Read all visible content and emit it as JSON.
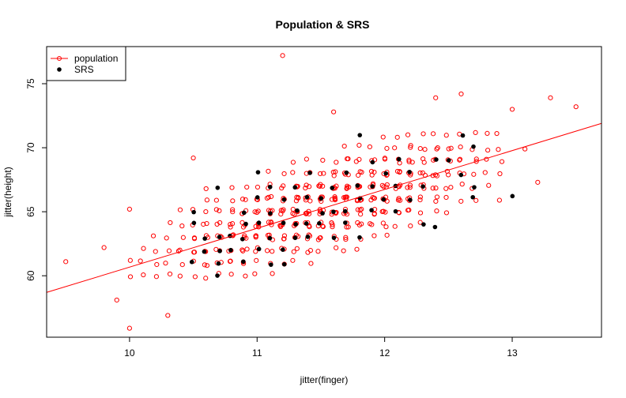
{
  "chart_data": {
    "type": "scatter",
    "title": "Population & SRS",
    "xlabel": "jitter(finger)",
    "ylabel": "jitter(height)",
    "xlim": [
      9.35,
      13.7
    ],
    "ylim": [
      55.2,
      77.9
    ],
    "xticks": [
      10,
      11,
      12,
      13
    ],
    "yticks": [
      60,
      65,
      70,
      75
    ],
    "grid": false,
    "legend": {
      "placement": "top-left",
      "entries": [
        {
          "label": "population",
          "color": "#ff0000",
          "symbol": "open-circle-line"
        },
        {
          "label": "SRS",
          "color": "#000000",
          "symbol": "filled-circle"
        }
      ]
    },
    "regression_line": {
      "color": "#ff0000",
      "x": [
        9.35,
        13.7
      ],
      "y": [
        58.7,
        71.9
      ]
    },
    "population_color": "#ff0000",
    "srs_color": "#000000",
    "population_outliers": [
      {
        "x": 9.5,
        "y": 61.1
      },
      {
        "x": 9.8,
        "y": 62.2
      },
      {
        "x": 9.9,
        "y": 58.1
      },
      {
        "x": 10.0,
        "y": 55.9
      },
      {
        "x": 10.0,
        "y": 65.2
      },
      {
        "x": 10.3,
        "y": 56.9
      },
      {
        "x": 10.5,
        "y": 69.2
      },
      {
        "x": 11.2,
        "y": 77.2
      },
      {
        "x": 10.6,
        "y": 66.8
      },
      {
        "x": 11.6,
        "y": 72.8
      },
      {
        "x": 12.4,
        "y": 73.9
      },
      {
        "x": 12.6,
        "y": 74.2
      },
      {
        "x": 13.3,
        "y": 73.9
      },
      {
        "x": 13.5,
        "y": 73.2
      },
      {
        "x": 13.2,
        "y": 67.3
      },
      {
        "x": 13.0,
        "y": 73.0
      },
      {
        "x": 12.9,
        "y": 65.9
      },
      {
        "x": 13.1,
        "y": 69.9
      }
    ],
    "population_grid": {
      "x_range": [
        10.0,
        12.9
      ],
      "x_step": 0.1,
      "y_range": [
        58,
        73
      ],
      "y_step": 1,
      "center": {
        "x": 11.55,
        "y": 65.5
      },
      "slope": 3.0
    },
    "srs_points": [
      {
        "x": 10.5,
        "y": 61.0
      },
      {
        "x": 10.5,
        "y": 64.0
      },
      {
        "x": 10.5,
        "y": 65.0
      },
      {
        "x": 10.6,
        "y": 62.0
      },
      {
        "x": 10.6,
        "y": 63.0
      },
      {
        "x": 10.7,
        "y": 60.0
      },
      {
        "x": 10.7,
        "y": 61.0
      },
      {
        "x": 10.7,
        "y": 62.0
      },
      {
        "x": 10.7,
        "y": 63.0
      },
      {
        "x": 10.7,
        "y": 67.0
      },
      {
        "x": 10.8,
        "y": 62.0
      },
      {
        "x": 10.8,
        "y": 63.0
      },
      {
        "x": 10.9,
        "y": 61.0
      },
      {
        "x": 10.9,
        "y": 63.0
      },
      {
        "x": 10.9,
        "y": 64.0
      },
      {
        "x": 10.9,
        "y": 65.0
      },
      {
        "x": 11.0,
        "y": 62.0
      },
      {
        "x": 11.0,
        "y": 64.0
      },
      {
        "x": 11.0,
        "y": 66.0
      },
      {
        "x": 11.0,
        "y": 68.0
      },
      {
        "x": 11.1,
        "y": 61.0
      },
      {
        "x": 11.1,
        "y": 63.0
      },
      {
        "x": 11.1,
        "y": 65.0
      },
      {
        "x": 11.1,
        "y": 67.0
      },
      {
        "x": 11.2,
        "y": 61.0
      },
      {
        "x": 11.2,
        "y": 62.0
      },
      {
        "x": 11.2,
        "y": 64.0
      },
      {
        "x": 11.2,
        "y": 66.0
      },
      {
        "x": 11.3,
        "y": 63.0
      },
      {
        "x": 11.3,
        "y": 64.0
      },
      {
        "x": 11.3,
        "y": 65.0
      },
      {
        "x": 11.3,
        "y": 67.0
      },
      {
        "x": 11.4,
        "y": 63.0
      },
      {
        "x": 11.4,
        "y": 64.0
      },
      {
        "x": 11.4,
        "y": 66.0
      },
      {
        "x": 11.4,
        "y": 68.0
      },
      {
        "x": 11.5,
        "y": 64.0
      },
      {
        "x": 11.5,
        "y": 65.0
      },
      {
        "x": 11.5,
        "y": 66.0
      },
      {
        "x": 11.6,
        "y": 63.0
      },
      {
        "x": 11.6,
        "y": 65.0
      },
      {
        "x": 11.6,
        "y": 67.0
      },
      {
        "x": 11.7,
        "y": 64.0
      },
      {
        "x": 11.7,
        "y": 65.0
      },
      {
        "x": 11.7,
        "y": 68.0
      },
      {
        "x": 11.8,
        "y": 63.0
      },
      {
        "x": 11.8,
        "y": 66.0
      },
      {
        "x": 11.8,
        "y": 67.0
      },
      {
        "x": 11.8,
        "y": 71.0
      },
      {
        "x": 11.9,
        "y": 65.0
      },
      {
        "x": 11.9,
        "y": 67.0
      },
      {
        "x": 11.9,
        "y": 69.0
      },
      {
        "x": 12.0,
        "y": 66.0
      },
      {
        "x": 12.0,
        "y": 68.0
      },
      {
        "x": 12.1,
        "y": 65.0
      },
      {
        "x": 12.1,
        "y": 67.0
      },
      {
        "x": 12.1,
        "y": 69.0
      },
      {
        "x": 12.2,
        "y": 66.0
      },
      {
        "x": 12.2,
        "y": 68.0
      },
      {
        "x": 12.3,
        "y": 64.0
      },
      {
        "x": 12.3,
        "y": 67.0
      },
      {
        "x": 12.4,
        "y": 69.0
      },
      {
        "x": 12.5,
        "y": 69.0
      },
      {
        "x": 12.6,
        "y": 68.0
      },
      {
        "x": 12.6,
        "y": 71.0
      },
      {
        "x": 12.7,
        "y": 66.0
      },
      {
        "x": 12.7,
        "y": 67.0
      },
      {
        "x": 12.7,
        "y": 70.0
      },
      {
        "x": 13.0,
        "y": 66.2
      },
      {
        "x": 12.4,
        "y": 63.8
      }
    ]
  }
}
